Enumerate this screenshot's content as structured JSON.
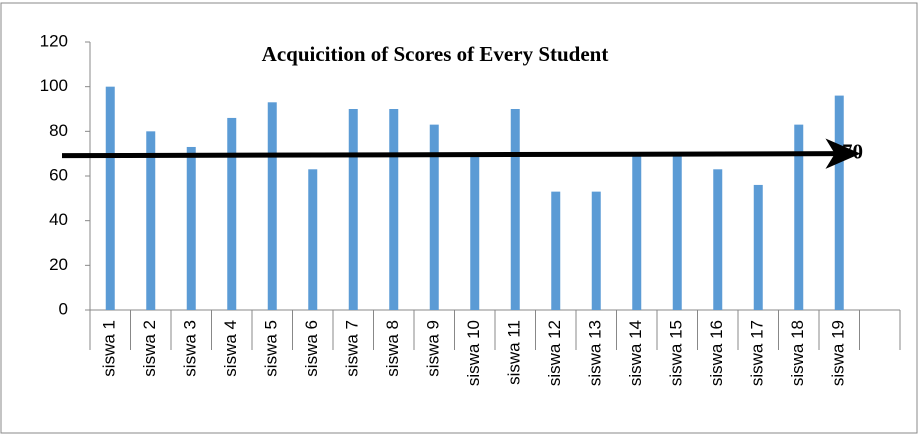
{
  "chart_data": {
    "type": "bar",
    "title": "Acquicition of Scores of Every Student",
    "categories": [
      "siswa 1",
      "siswa 2",
      "siswa 3",
      "siswa 4",
      "siswa 5",
      "siswa 6",
      "siswa 7",
      "siswa 8",
      "siswa 9",
      "siswa 10",
      "siswa 11",
      "siswa 12",
      "siswa 13",
      "siswa 14",
      "siswa 15",
      "siswa 16",
      "siswa 17",
      "siswa 18",
      "siswa 19",
      null
    ],
    "values": [
      100,
      80,
      73,
      86,
      93,
      63,
      90,
      90,
      83,
      70,
      90,
      53,
      53,
      70,
      70,
      63,
      56,
      83,
      96,
      null
    ],
    "color": "#5b9bd5",
    "ylim": [
      0,
      120
    ],
    "yticks": [
      0,
      20,
      40,
      60,
      80,
      100,
      120
    ],
    "grid": false,
    "reference_line": {
      "value": 70,
      "color": "#000000"
    }
  }
}
